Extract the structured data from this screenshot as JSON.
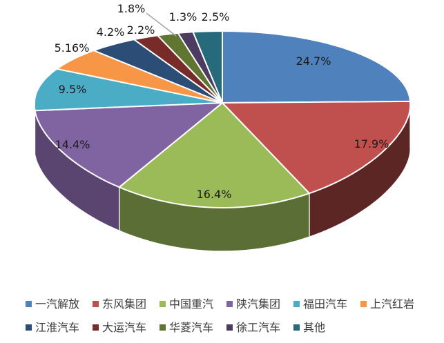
{
  "chart_data": {
    "type": "pie",
    "style": "3d-exploded-none",
    "title": "",
    "legend_position": "bottom",
    "legend_rows": 2,
    "slices": [
      {
        "name": "一汽解放",
        "value": 24.7,
        "label": "24.7%",
        "color": "#4F81BD"
      },
      {
        "name": "东风集团",
        "value": 17.9,
        "label": "17.9%",
        "color": "#C0504D"
      },
      {
        "name": "中国重汽",
        "value": 16.4,
        "label": "16.4%",
        "color": "#9BBB59"
      },
      {
        "name": "陕汽集团",
        "value": 14.4,
        "label": "14.4%",
        "color": "#8064A2"
      },
      {
        "name": "福田汽车",
        "value": 9.5,
        "label": "9.5%",
        "color": "#4BACC6"
      },
      {
        "name": "上汽红岩",
        "value": 5.16,
        "label": "5.16%",
        "color": "#F79646"
      },
      {
        "name": "江淮汽车",
        "value": 4.2,
        "label": "4.2%",
        "color": "#2C4D75"
      },
      {
        "name": "大运汽车",
        "value": 2.2,
        "label": "2.2%",
        "color": "#772C2A"
      },
      {
        "name": "华菱汽车",
        "value": 1.8,
        "label": "1.8%",
        "color": "#5F7530"
      },
      {
        "name": "徐工汽车",
        "value": 1.3,
        "label": "1.3%",
        "color": "#4D3B62"
      },
      {
        "name": "其他",
        "value": 2.5,
        "label": "2.5%",
        "color": "#276A7C"
      }
    ],
    "colors": {
      "background": "#FFFFFF",
      "slice_outline": "#FFFFFF",
      "value_label_color": "#1A1A1A",
      "legend_text_color": "#3D3D3D",
      "leader_line_color": "#A6A6A6"
    }
  }
}
